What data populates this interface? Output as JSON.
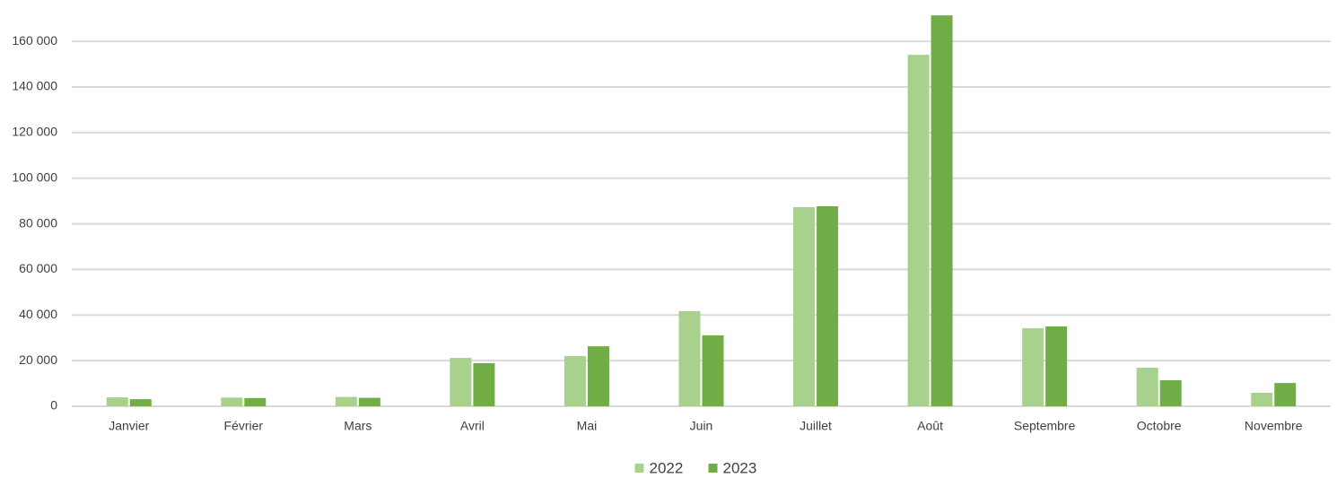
{
  "chart_data": {
    "type": "bar",
    "categories": [
      "Janvier",
      "Février",
      "Mars",
      "Avril",
      "Mai",
      "Juin",
      "Juillet",
      "Août",
      "Septembre",
      "Octobre",
      "Novembre"
    ],
    "series": [
      {
        "name": "2022",
        "color": "#a9d18e",
        "values": [
          3900,
          3800,
          4100,
          21200,
          22000,
          41700,
          87300,
          154100,
          34200,
          16900,
          5900
        ]
      },
      {
        "name": "2023",
        "color": "#70ad47",
        "values": [
          3100,
          3600,
          3700,
          18900,
          26300,
          31100,
          87700,
          171400,
          35000,
          11400,
          10200
        ]
      }
    ],
    "ylim": [
      0,
      175000
    ],
    "yticks": [
      0,
      {
        "value": 20000,
        "label": "20 000"
      },
      {
        "value": 40000,
        "label": "40 000"
      },
      {
        "value": 60000,
        "label": "60 000"
      },
      {
        "value": 80000,
        "label": "80 000"
      },
      {
        "value": 100000,
        "label": "100 000"
      },
      {
        "value": 120000,
        "label": "120 000"
      },
      {
        "value": 140000,
        "label": "140 000"
      },
      {
        "value": 160000,
        "label": "160 000"
      }
    ],
    "grid": true,
    "legend": "bottom"
  }
}
